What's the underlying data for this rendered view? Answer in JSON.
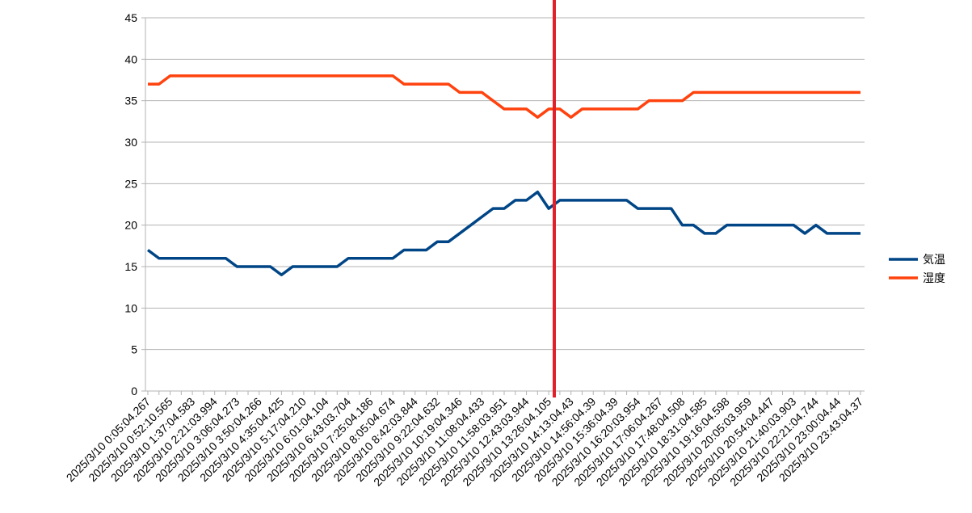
{
  "chart_data": {
    "type": "line",
    "categories": [
      "2025/3/10 0:05:04.267",
      null,
      "2025/3/10 0:52:10.565",
      null,
      "2025/3/10 1:37:04.583",
      null,
      "2025/3/10 2:21:03.994",
      null,
      "2025/3/10 3:06:04.273",
      null,
      "2025/3/10 3:50:04.266",
      null,
      "2025/3/10 4:35:04.425",
      null,
      "2025/3/10 5:17:04.210",
      null,
      "2025/3/10 6:01:04.104",
      null,
      "2025/3/10 6:43:03.704",
      null,
      "2025/3/10 7:25:04.186",
      null,
      "2025/3/10 8:05:04.674",
      null,
      "2025/3/10 8:42:03.844",
      null,
      "2025/3/10 9:22:04.632",
      null,
      "2025/3/10 10:19:04.346",
      null,
      "2025/3/10 11:08:04.433",
      null,
      "2025/3/10 11:58:03.951",
      null,
      "2025/3/10 12:43:03.944",
      null,
      "2025/3/10 13:26:04.105",
      null,
      "2025/3/10 14:13:04.43",
      null,
      "2025/3/10 14:56:04.39",
      null,
      "2025/3/10 15:36:04.39",
      null,
      "2025/3/10 16:20:03.954",
      null,
      "2025/3/10 17:06:04.267",
      null,
      "2025/3/10 17:48:04.508",
      null,
      "2025/3/10 18:31:04.585",
      null,
      "2025/3/10 19:16:04.598",
      null,
      "2025/3/10 20:05:03.959",
      null,
      "2025/3/10 20:54:04.447",
      null,
      "2025/3/10 21:40:03.903",
      null,
      "2025/3/10 22:21:04.744",
      null,
      "2025/3/10 23:00:04.44",
      null,
      "2025/3/10 23:43:04.37"
    ],
    "series": [
      {
        "name": "気温",
        "color": "#004586",
        "values": [
          17,
          16,
          16,
          16,
          16,
          16,
          16,
          16,
          15,
          15,
          15,
          15,
          14,
          15,
          15,
          15,
          15,
          15,
          16,
          16,
          16,
          16,
          16,
          17,
          17,
          17,
          18,
          18,
          19,
          20,
          21,
          22,
          22,
          23,
          23,
          24,
          22,
          23,
          23,
          23,
          23,
          23,
          23,
          23,
          22,
          22,
          22,
          22,
          20,
          20,
          19,
          19,
          20,
          20,
          20,
          20,
          20,
          20,
          20,
          19,
          20,
          19,
          19,
          19,
          19
        ]
      },
      {
        "name": "湿度",
        "color": "#ff420e",
        "values": [
          37,
          37,
          38,
          38,
          38,
          38,
          38,
          38,
          38,
          38,
          38,
          38,
          38,
          38,
          38,
          38,
          38,
          38,
          38,
          38,
          38,
          38,
          38,
          37,
          37,
          37,
          37,
          37,
          36,
          36,
          36,
          35,
          34,
          34,
          34,
          33,
          34,
          34,
          33,
          34,
          34,
          34,
          34,
          34,
          34,
          35,
          35,
          35,
          35,
          36,
          36,
          36,
          36,
          36,
          36,
          36,
          36,
          36,
          36,
          36,
          36,
          36,
          36,
          36,
          36
        ]
      }
    ],
    "ylim": [
      0,
      45
    ],
    "yticks": [
      0,
      5,
      10,
      15,
      20,
      25,
      30,
      35,
      40,
      45
    ],
    "grid": true,
    "legend": "right"
  }
}
